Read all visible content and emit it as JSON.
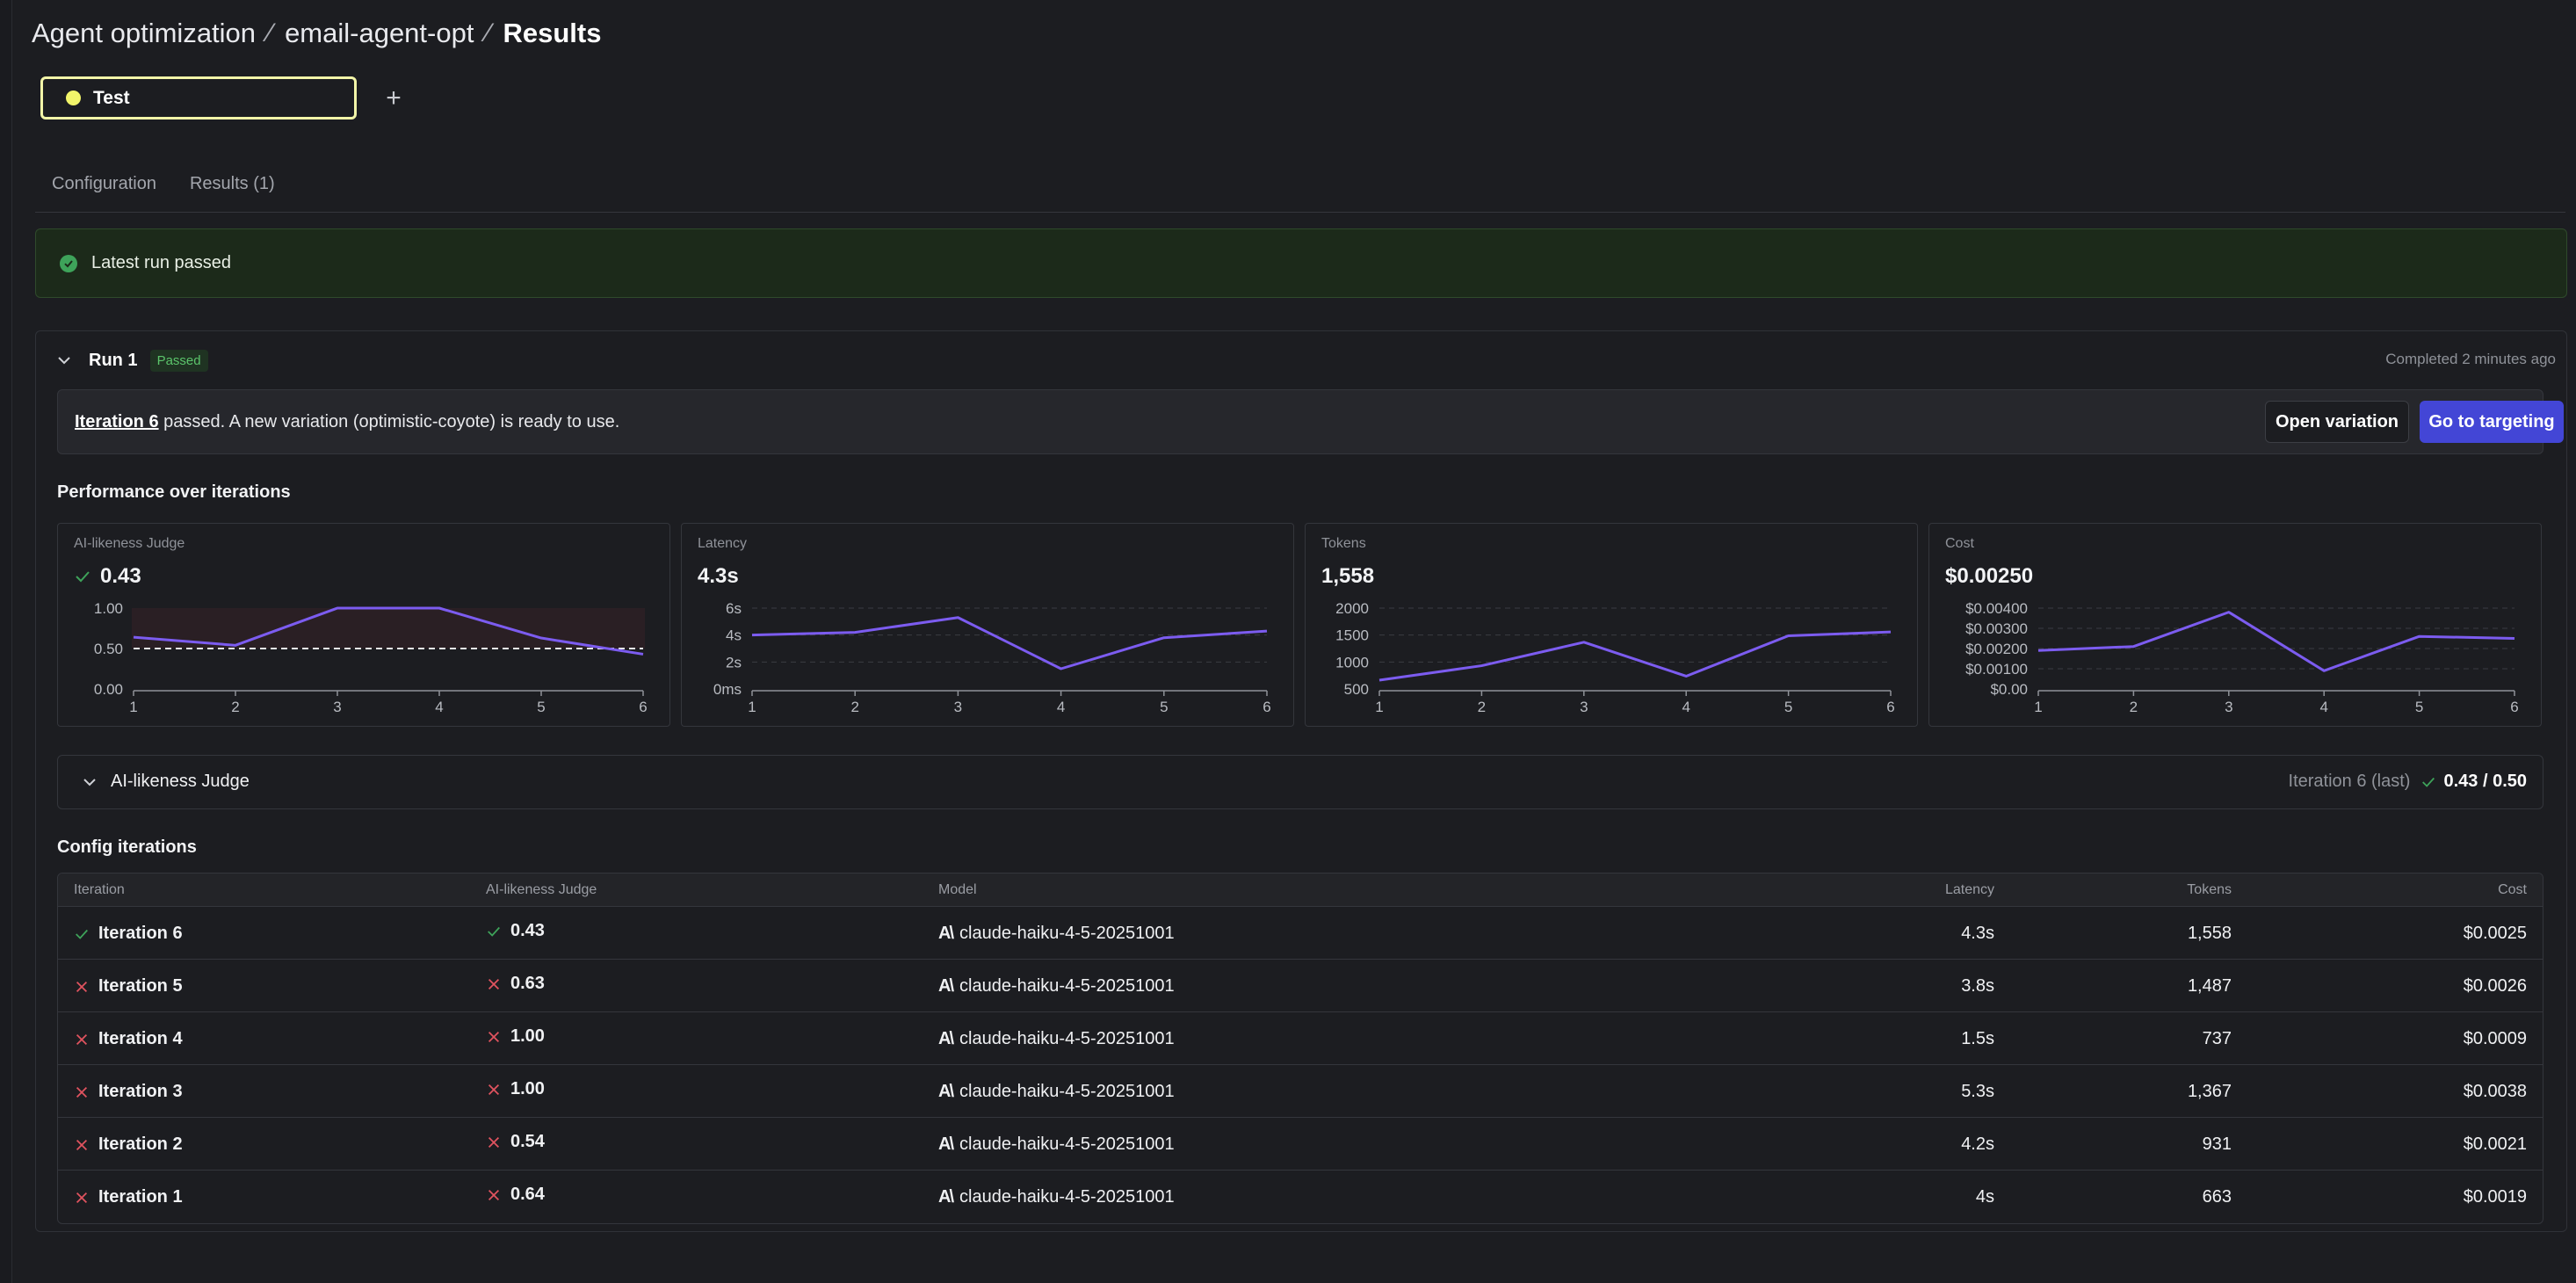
{
  "breadcrumb": {
    "items": [
      "Agent optimization",
      "email-agent-opt"
    ],
    "current": "Results",
    "separator": "⁄"
  },
  "environment": {
    "name": "Test",
    "dot_color": "#f2f56a",
    "add_label": "+"
  },
  "tabs": [
    {
      "label": "Configuration"
    },
    {
      "label": "Results (1)"
    }
  ],
  "banner": {
    "text": "Latest run passed"
  },
  "run": {
    "title": "Run 1",
    "status": "Passed",
    "completed": "Completed 2 minutes ago",
    "info": {
      "iteration_link": "Iteration 6",
      "message": " passed. A new variation (optimistic-coyote) is ready to use."
    },
    "open_variation_label": "Open variation",
    "go_targeting_label": "Go to targeting"
  },
  "performance": {
    "title": "Performance over iterations",
    "cards": [
      {
        "label": "AI-likeness Judge",
        "value": "0.43",
        "passed": true
      },
      {
        "label": "Latency",
        "value": "4.3s"
      },
      {
        "label": "Tokens",
        "value": "1,558"
      },
      {
        "label": "Cost",
        "value": "$0.00250"
      }
    ]
  },
  "chart_data": [
    {
      "type": "line",
      "title": "AI-likeness Judge",
      "x": [
        1,
        2,
        3,
        4,
        5,
        6
      ],
      "series": [
        {
          "values": [
            0.64,
            0.54,
            1.0,
            1.0,
            0.63,
            0.43
          ]
        }
      ],
      "threshold": 0.5,
      "ylim": [
        0,
        1
      ],
      "yticks": [
        "0.00",
        "0.50",
        "1.00"
      ],
      "color": "#7c5cf0"
    },
    {
      "type": "line",
      "title": "Latency",
      "x": [
        1,
        2,
        3,
        4,
        5,
        6
      ],
      "series": [
        {
          "values": [
            4.0,
            4.2,
            5.3,
            1.5,
            3.8,
            4.3
          ]
        }
      ],
      "ylim": [
        0,
        6
      ],
      "yticks": [
        "0ms",
        "2s",
        "4s",
        "6s"
      ],
      "color": "#7c5cf0"
    },
    {
      "type": "line",
      "title": "Tokens",
      "x": [
        1,
        2,
        3,
        4,
        5,
        6
      ],
      "series": [
        {
          "values": [
            663,
            931,
            1367,
            737,
            1487,
            1558
          ]
        }
      ],
      "ylim": [
        500,
        2000
      ],
      "yticks": [
        "500",
        "1000",
        "1500",
        "2000"
      ],
      "color": "#7c5cf0"
    },
    {
      "type": "line",
      "title": "Cost",
      "x": [
        1,
        2,
        3,
        4,
        5,
        6
      ],
      "series": [
        {
          "values": [
            0.0019,
            0.0021,
            0.0038,
            0.0009,
            0.0026,
            0.0025
          ]
        }
      ],
      "ylim": [
        0,
        0.004
      ],
      "yticks": [
        "$0.00",
        "$0.00100",
        "$0.00200",
        "$0.00300",
        "$0.00400"
      ],
      "color": "#7c5cf0"
    }
  ],
  "judge": {
    "title": "AI-likeness Judge",
    "iteration_label": "Iteration 6 (last)",
    "score": "0.43 / 0.50"
  },
  "config": {
    "title": "Config iterations",
    "columns": [
      "Iteration",
      "AI-likeness Judge",
      "Model",
      "Latency",
      "Tokens",
      "Cost"
    ],
    "rows": [
      {
        "iteration": "Iteration 6",
        "passed": true,
        "judge": "0.43",
        "model": "claude-haiku-4-5-20251001",
        "latency": "4.3s",
        "tokens": "1,558",
        "cost": "$0.0025"
      },
      {
        "iteration": "Iteration 5",
        "passed": false,
        "judge": "0.63",
        "model": "claude-haiku-4-5-20251001",
        "latency": "3.8s",
        "tokens": "1,487",
        "cost": "$0.0026"
      },
      {
        "iteration": "Iteration 4",
        "passed": false,
        "judge": "1.00",
        "model": "claude-haiku-4-5-20251001",
        "latency": "1.5s",
        "tokens": "737",
        "cost": "$0.0009"
      },
      {
        "iteration": "Iteration 3",
        "passed": false,
        "judge": "1.00",
        "model": "claude-haiku-4-5-20251001",
        "latency": "5.3s",
        "tokens": "1,367",
        "cost": "$0.0038"
      },
      {
        "iteration": "Iteration 2",
        "passed": false,
        "judge": "0.54",
        "model": "claude-haiku-4-5-20251001",
        "latency": "4.2s",
        "tokens": "931",
        "cost": "$0.0021"
      },
      {
        "iteration": "Iteration 1",
        "passed": false,
        "judge": "0.64",
        "model": "claude-haiku-4-5-20251001",
        "latency": "4s",
        "tokens": "663",
        "cost": "$0.0019"
      }
    ]
  },
  "colors": {
    "pass": "#3ea35a",
    "fail": "#e0535f",
    "accent": "#4346d6",
    "line": "#7c5cf0"
  }
}
